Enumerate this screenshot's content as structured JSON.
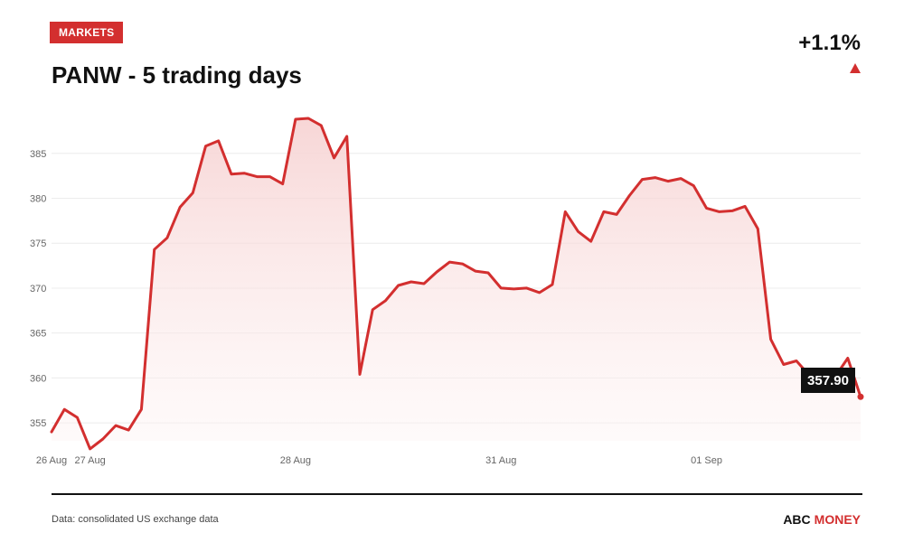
{
  "badge": "MARKETS",
  "change": {
    "value": "+1.1%",
    "arrow_icon": "triangle-up-icon",
    "color": "#d32f2f"
  },
  "footer": {
    "source": "Data: consolidated US exchange data",
    "brand_part1": "ABC",
    "brand_part2": "MONEY"
  },
  "colors": {
    "accent": "#d32f2f",
    "line": "#d32f2f",
    "fill": "#fbe6e6",
    "grid": "#ececec",
    "tick": "#666666",
    "callout_bg": "#111111"
  },
  "chart_data": {
    "type": "area",
    "title": "PANW - 5 trading days",
    "xlabel": "",
    "ylabel": "",
    "ylim": [
      353,
      389
    ],
    "yticks": [
      355,
      360,
      365,
      370,
      375,
      380,
      385
    ],
    "xticks": [
      {
        "index": 0,
        "label": "26 Aug"
      },
      {
        "index": 3,
        "label": "27 Aug"
      },
      {
        "index": 19,
        "label": "28 Aug"
      },
      {
        "index": 35,
        "label": "31 Aug"
      },
      {
        "index": 51,
        "label": "01 Sep"
      }
    ],
    "grid": true,
    "last_value_label": "357.90",
    "series": [
      {
        "values": [
          354.0,
          356.5,
          355.6,
          352.1,
          353.2,
          354.7,
          354.2,
          356.5,
          374.3,
          375.6,
          379.0,
          380.6,
          385.8,
          386.4,
          382.7,
          382.8,
          382.4,
          382.4,
          381.6,
          388.8,
          388.9,
          388.1,
          384.5,
          386.9,
          360.4,
          367.6,
          368.6,
          370.3,
          370.7,
          370.5,
          371.8,
          372.9,
          372.7,
          371.9,
          371.7,
          370.0,
          369.9,
          370.0,
          369.5,
          370.4,
          378.5,
          376.3,
          375.2,
          378.5,
          378.2,
          380.3,
          382.1,
          382.3,
          381.9,
          382.2,
          381.4,
          378.9,
          378.5,
          378.6,
          379.1,
          376.6,
          364.3,
          361.5,
          361.9,
          360.3,
          359.6,
          360.1,
          362.2,
          357.9
        ]
      }
    ]
  }
}
